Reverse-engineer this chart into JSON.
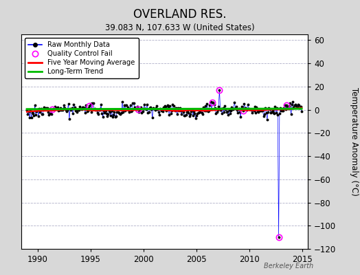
{
  "title": "OVERLAND RES.",
  "subtitle": "39.083 N, 107.633 W (United States)",
  "ylabel": "Temperature Anomaly (°C)",
  "watermark": "Berkeley Earth",
  "xlim": [
    1988.5,
    2015.5
  ],
  "ylim": [
    -120,
    65
  ],
  "yticks": [
    -120,
    -100,
    -80,
    -60,
    -40,
    -20,
    0,
    20,
    40,
    60
  ],
  "xticks": [
    1990,
    1995,
    2000,
    2005,
    2010,
    2015
  ],
  "bg_color": "#d8d8d8",
  "plot_bg_color": "#ffffff",
  "grid_color": "#b0b0c8",
  "raw_color": "#0000ff",
  "raw_marker_color": "#000000",
  "qc_color": "#ff00ff",
  "moving_avg_color": "#ff0000",
  "trend_color": "#00bb00",
  "seed": 12,
  "start_year": 1989.0,
  "n_months": 312,
  "raw_amplitude": 4.5,
  "outlier1_idx": 218,
  "outlier1_y": 17.0,
  "outlier2_idx": 285,
  "outlier2_y": -110.0,
  "qc_fail_idxs": [
    29,
    71,
    126,
    210,
    218,
    245,
    285,
    294
  ],
  "trend_slope": 0.015,
  "trend_intercept": 0.5
}
